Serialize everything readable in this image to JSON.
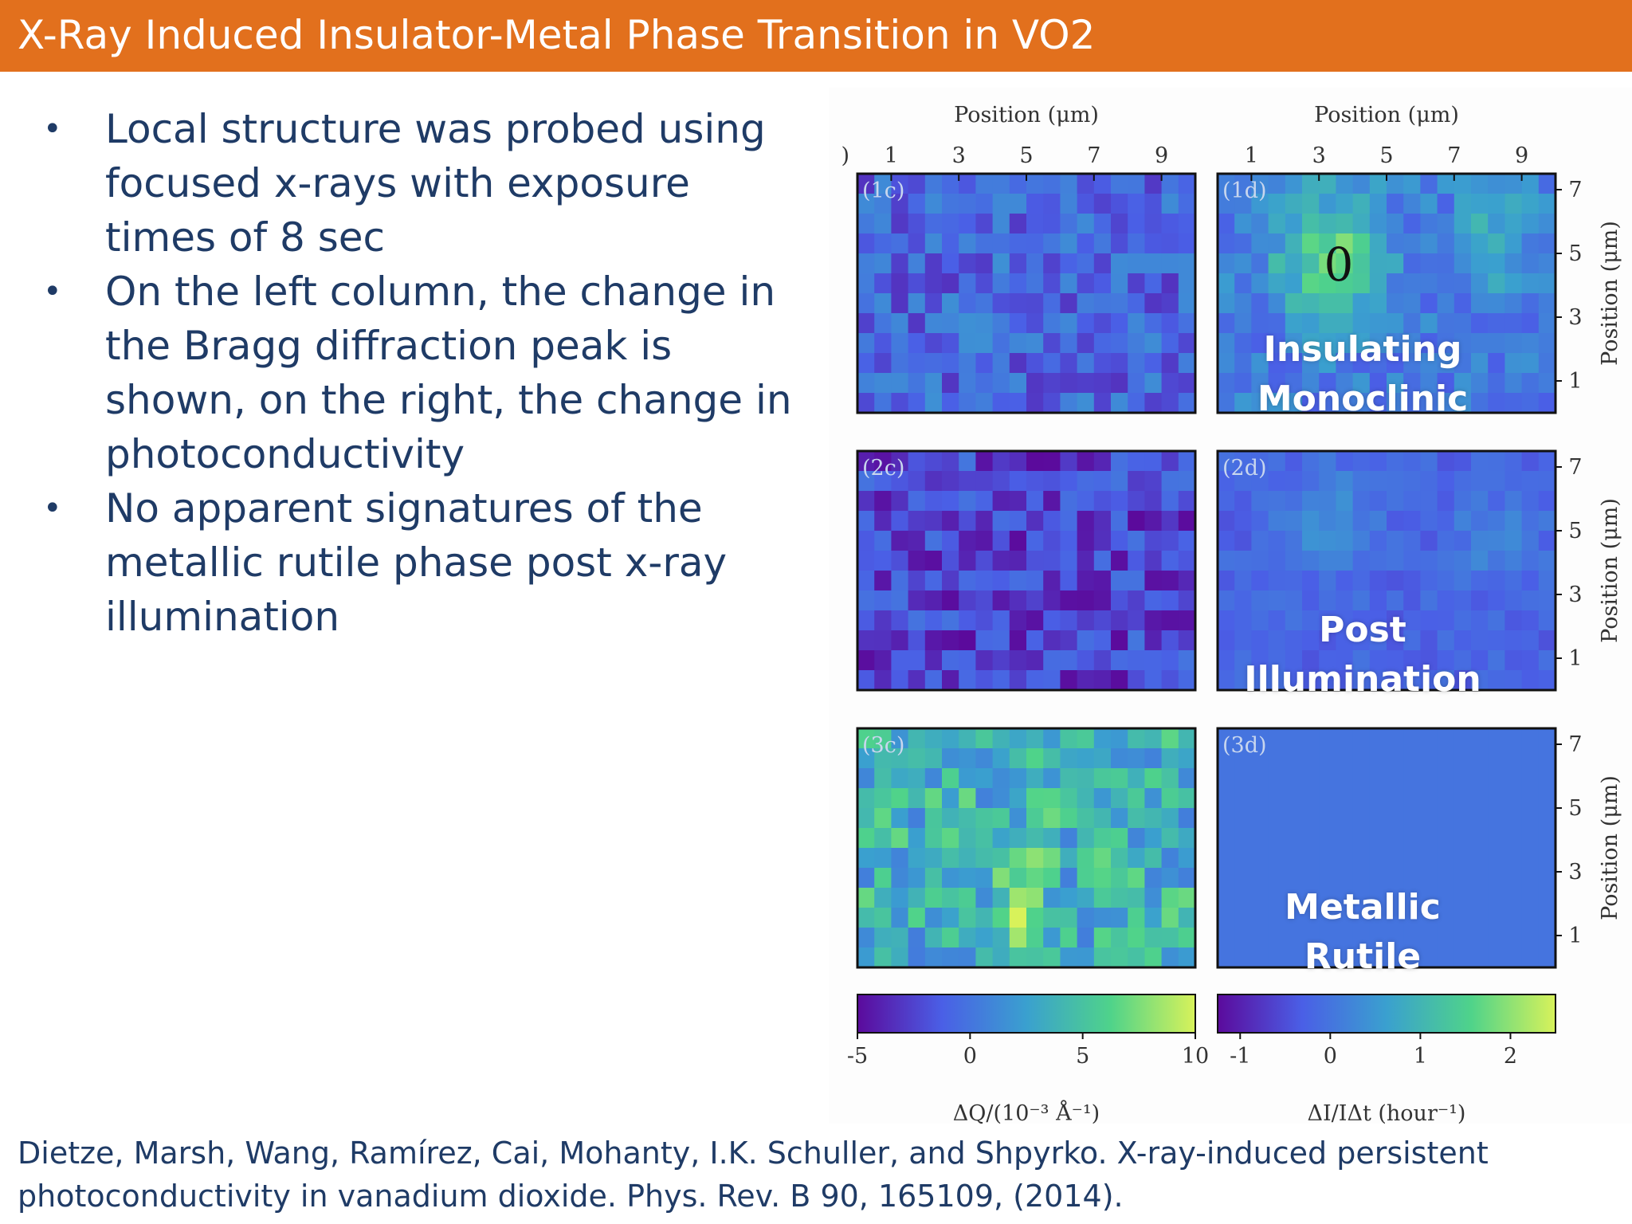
{
  "slide": {
    "title": "X-Ray Induced Insulator-Metal Phase Transition in VO2",
    "bullet_glyph": "•",
    "bullets": [
      "Local structure was probed using focused x-rays with exposure times of 8 sec",
      "On the left column, the change in the Bragg diffraction peak is shown, on the right, the change in photoconductivity",
      "No apparent signatures of the metallic rutile phase post x-ray illumination"
    ],
    "citation": "Dietze, Marsh, Wang, Ramírez, Cai, Mohanty, I.K. Schuller, and Shpyrko. X-ray-induced persistent photoconductivity in vanadium dioxide. Phys. Rev. B 90, 165109, (2014).",
    "colors": {
      "title_bar": "#e2701d",
      "title_text": "#ffffff",
      "body_text": "#1f3b66"
    }
  },
  "overlays": {
    "row1": "Insulating\nMonoclinic",
    "row2": "Post\nIllumination",
    "row3": "Metallic\nRutile"
  },
  "chart_data": {
    "type": "heatmap",
    "x_axis": {
      "label": "Position (μm)",
      "ticks": [
        "1",
        "3",
        "5",
        "7",
        "9"
      ],
      "range": [
        0,
        10
      ]
    },
    "y_axis": {
      "label": "Position (μm)",
      "ticks": [
        "1",
        "3",
        "5",
        "7"
      ],
      "range": [
        0,
        7.5
      ]
    },
    "colormap": [
      "#5b0a9c",
      "#4a5fe6",
      "#3aa0cf",
      "#4fd38a",
      "#d8f25a"
    ],
    "panels": [
      {
        "id": "1c",
        "label": "(1c)",
        "column": "c",
        "row": 1,
        "mean": 0.28,
        "variation": 0.16
      },
      {
        "id": "2c",
        "label": "(2c)",
        "column": "c",
        "row": 2,
        "mean": 0.17,
        "variation": 0.17
      },
      {
        "id": "3c",
        "label": "(3c)",
        "column": "c",
        "row": 3,
        "mean": 0.58,
        "variation": 0.22
      },
      {
        "id": "1d",
        "label": "(1d)",
        "column": "d",
        "row": 1,
        "mean": 0.36,
        "variation": 0.12
      },
      {
        "id": "2d",
        "label": "(2d)",
        "column": "d",
        "row": 2,
        "mean": 0.27,
        "variation": 0.06
      },
      {
        "id": "3d",
        "label": "(3d)",
        "column": "d",
        "row": 3,
        "mean": 0.33,
        "variation": 0.0
      }
    ],
    "colorbars": [
      {
        "column": "c",
        "ticks": [
          "-5",
          "0",
          "5",
          "10"
        ],
        "range": [
          -5,
          10
        ],
        "label": "ΔQ/(10⁻³ Å⁻¹)"
      },
      {
        "column": "d",
        "ticks": [
          "-1",
          "0",
          "1",
          "2"
        ],
        "range": [
          -1.25,
          2.5
        ],
        "label": "ΔI/IΔt (hour⁻¹)"
      }
    ],
    "marker": {
      "panel": "1d",
      "text": "0"
    },
    "clipped_tick": ")"
  }
}
